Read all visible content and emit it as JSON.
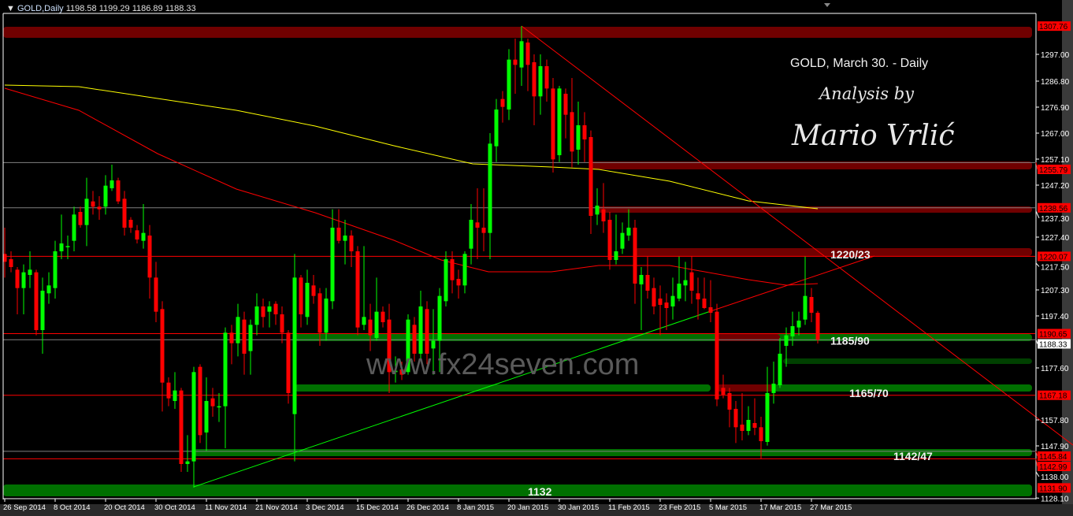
{
  "header": {
    "symbol": "GOLD,Daily",
    "ohlc": "1198.58 1199.29 1186.89 1188.33"
  },
  "annotations": {
    "title": "GOLD, March 30. - Daily",
    "analysis_by": "Analysis by",
    "author": "Mario Vrlić",
    "watermark": "www.fx24seven.com",
    "zone_labels": [
      {
        "text": "1220/23",
        "bar": 131,
        "price": 1220.8
      },
      {
        "text": "1185/90",
        "bar": 131,
        "price": 1188.0
      },
      {
        "text": "1165/70",
        "bar": 134,
        "price": 1168.0
      },
      {
        "text": "1142/47",
        "bar": 141,
        "price": 1144.0
      },
      {
        "text": "1132",
        "bar": 83,
        "price": 1130.5
      }
    ]
  },
  "colors": {
    "bull": "#00ff00",
    "bear": "#ff0000",
    "background": "#000000",
    "axis_text": "#ffffff",
    "ma_slow": "#ffff00",
    "ma_fast": "#ff0000",
    "support_zone": "#007000",
    "resistance_zone": "#700000"
  },
  "chart_data": {
    "type": "candlestick",
    "ylim": [
      1128.1,
      1307.76
    ],
    "y_ticks": [
      1297.0,
      1286.8,
      1276.9,
      1267.0,
      1257.1,
      1247.2,
      1237.3,
      1227.4,
      1217.5,
      1207.3,
      1197.4,
      1177.6,
      1157.8,
      1147.9,
      1138.0,
      1128.1
    ],
    "price_labels": [
      {
        "value": "1307.76",
        "style": "red"
      },
      {
        "value": "1255.79",
        "style": "red"
      },
      {
        "value": "1238.56",
        "style": "red"
      },
      {
        "value": "1220.07",
        "style": "red"
      },
      {
        "value": "1190.65",
        "style": "red"
      },
      {
        "value": "1188.33",
        "style": "current"
      },
      {
        "value": "1167.18",
        "style": "red"
      },
      {
        "value": "1145.84",
        "style": "red"
      },
      {
        "value": "1142.99",
        "style": "red"
      },
      {
        "value": "1131.90",
        "style": "red"
      }
    ],
    "x_ticks": [
      {
        "bar": 0,
        "label": "26 Sep 2014"
      },
      {
        "bar": 8,
        "label": "8 Oct 2014"
      },
      {
        "bar": 16,
        "label": "20 Oct 2014"
      },
      {
        "bar": 24,
        "label": "30 Oct 2014"
      },
      {
        "bar": 32,
        "label": "11 Nov 2014"
      },
      {
        "bar": 40,
        "label": "21 Nov 2014"
      },
      {
        "bar": 48,
        "label": "3 Dec 2014"
      },
      {
        "bar": 56,
        "label": "15 Dec 2014"
      },
      {
        "bar": 64,
        "label": "26 Dec 2014"
      },
      {
        "bar": 72,
        "label": "8 Jan 2015"
      },
      {
        "bar": 80,
        "label": "20 Jan 2015"
      },
      {
        "bar": 88,
        "label": "30 Jan 2015"
      },
      {
        "bar": 96,
        "label": "11 Feb 2015"
      },
      {
        "bar": 104,
        "label": "23 Feb 2015"
      },
      {
        "bar": 112,
        "label": "5 Mar 2015"
      },
      {
        "bar": 120,
        "label": "17 Mar 2015"
      },
      {
        "bar": 128,
        "label": "27 Mar 2015"
      }
    ],
    "ohlc": [
      [
        1221,
        1231,
        1212,
        1218
      ],
      [
        1219,
        1222,
        1214,
        1216
      ],
      [
        1215,
        1216,
        1198,
        1208
      ],
      [
        1208,
        1217,
        1198,
        1214
      ],
      [
        1213,
        1222,
        1208,
        1215
      ],
      [
        1214,
        1215,
        1190,
        1192
      ],
      [
        1192,
        1212,
        1183,
        1207
      ],
      [
        1206,
        1214,
        1202,
        1209
      ],
      [
        1208,
        1226,
        1204,
        1222
      ],
      [
        1222,
        1236,
        1219,
        1225
      ],
      [
        1224,
        1228,
        1219,
        1224
      ],
      [
        1226,
        1239,
        1222,
        1236
      ],
      [
        1237,
        1239,
        1231,
        1232
      ],
      [
        1232,
        1250,
        1224,
        1242
      ],
      [
        1241,
        1245,
        1236,
        1239
      ],
      [
        1239,
        1243,
        1234,
        1238
      ],
      [
        1239,
        1251,
        1236,
        1247
      ],
      [
        1246,
        1255,
        1245,
        1249
      ],
      [
        1249,
        1250,
        1240,
        1241
      ],
      [
        1242,
        1245,
        1228,
        1231
      ],
      [
        1234,
        1235,
        1229,
        1231
      ],
      [
        1230,
        1232,
        1225,
        1226.5
      ],
      [
        1226,
        1240,
        1223,
        1229
      ],
      [
        1228,
        1232,
        1204,
        1212
      ],
      [
        1212,
        1218,
        1195,
        1199
      ],
      [
        1200,
        1203,
        1161,
        1172
      ],
      [
        1172,
        1174,
        1163,
        1166
      ],
      [
        1165,
        1176,
        1162,
        1169
      ],
      [
        1169,
        1170,
        1138,
        1141
      ],
      [
        1141,
        1152,
        1138,
        1142
      ],
      [
        1142,
        1178,
        1132,
        1176
      ],
      [
        1178,
        1179,
        1149,
        1152
      ],
      [
        1153,
        1174,
        1146,
        1165
      ],
      [
        1166,
        1170,
        1159,
        1163
      ],
      [
        1163,
        1168,
        1157,
        1163
      ],
      [
        1163,
        1193,
        1147,
        1191
      ],
      [
        1191,
        1194,
        1179,
        1187
      ],
      [
        1187,
        1202,
        1182,
        1197
      ],
      [
        1196,
        1199,
        1175,
        1183
      ],
      [
        1184,
        1196,
        1175,
        1194
      ],
      [
        1194,
        1206,
        1190,
        1201
      ],
      [
        1201,
        1204,
        1193,
        1197
      ],
      [
        1199,
        1203,
        1193,
        1201
      ],
      [
        1202,
        1203,
        1194,
        1198
      ],
      [
        1198,
        1201,
        1187,
        1191
      ],
      [
        1191,
        1192,
        1164,
        1168
      ],
      [
        1160,
        1221,
        1142,
        1212
      ],
      [
        1212,
        1213,
        1193,
        1198
      ],
      [
        1197,
        1215,
        1194,
        1210
      ],
      [
        1209,
        1213,
        1202,
        1205
      ],
      [
        1206,
        1208,
        1186,
        1191
      ],
      [
        1191,
        1208,
        1188,
        1204
      ],
      [
        1203,
        1238,
        1200,
        1231
      ],
      [
        1231,
        1238,
        1225,
        1226
      ],
      [
        1226,
        1234,
        1217,
        1228
      ],
      [
        1228,
        1230,
        1216,
        1222
      ],
      [
        1222,
        1224,
        1190,
        1193
      ],
      [
        1194,
        1224,
        1192,
        1197
      ],
      [
        1196,
        1202,
        1184,
        1190
      ],
      [
        1189,
        1212,
        1188,
        1199
      ],
      [
        1199,
        1201,
        1193,
        1195
      ],
      [
        1196,
        1202,
        1168,
        1176
      ],
      [
        1176,
        1182,
        1172,
        1176.5
      ],
      [
        1177,
        1180,
        1173,
        1175
      ],
      [
        1176,
        1198,
        1175,
        1196
      ],
      [
        1194,
        1197,
        1180,
        1183
      ],
      [
        1183,
        1207,
        1181,
        1201
      ],
      [
        1200,
        1203,
        1179,
        1183
      ],
      [
        1185,
        1200,
        1175,
        1188
      ],
      [
        1188,
        1208,
        1176,
        1205
      ],
      [
        1203,
        1222,
        1201,
        1219
      ],
      [
        1219,
        1222,
        1206,
        1211
      ],
      [
        1211.5,
        1215,
        1204,
        1209
      ],
      [
        1209,
        1222,
        1206,
        1221
      ],
      [
        1223,
        1240,
        1217,
        1234
      ],
      [
        1233,
        1246,
        1219,
        1231
      ],
      [
        1231,
        1246,
        1222,
        1229
      ],
      [
        1229,
        1267,
        1219,
        1263
      ],
      [
        1262,
        1280,
        1256,
        1276
      ],
      [
        1280,
        1283,
        1271,
        1277
      ],
      [
        1276,
        1299,
        1272,
        1295
      ],
      [
        1295,
        1303,
        1282,
        1293
      ],
      [
        1292,
        1307.8,
        1285,
        1302
      ],
      [
        1301.5,
        1303,
        1283,
        1293
      ],
      [
        1294,
        1297,
        1270,
        1281
      ],
      [
        1281,
        1297,
        1274,
        1292.5
      ],
      [
        1292.5,
        1295,
        1279,
        1284
      ],
      [
        1284,
        1288,
        1252,
        1257
      ],
      [
        1258.6,
        1285,
        1256,
        1284
      ],
      [
        1282,
        1284,
        1265,
        1274
      ],
      [
        1275,
        1288,
        1254,
        1260
      ],
      [
        1260.7,
        1279,
        1255,
        1270
      ],
      [
        1270,
        1275,
        1256,
        1264.6
      ],
      [
        1265.5,
        1268,
        1228.6,
        1235.5
      ],
      [
        1236,
        1246,
        1232,
        1239.4
      ],
      [
        1238,
        1248,
        1229,
        1233.4
      ],
      [
        1234,
        1237,
        1215,
        1218.7
      ],
      [
        1218.7,
        1236,
        1217,
        1222
      ],
      [
        1223,
        1233,
        1221,
        1229
      ],
      [
        1228,
        1238,
        1226,
        1231
      ],
      [
        1231,
        1234,
        1202,
        1209.7
      ],
      [
        1209.4,
        1216,
        1192,
        1213
      ],
      [
        1213,
        1220,
        1204,
        1207
      ],
      [
        1208,
        1212,
        1198,
        1201
      ],
      [
        1204,
        1209,
        1190,
        1201.6
      ],
      [
        1202.5,
        1206,
        1192,
        1200.4
      ],
      [
        1201,
        1212,
        1196,
        1205
      ],
      [
        1204,
        1220,
        1203,
        1209.7
      ],
      [
        1209,
        1218,
        1203,
        1211
      ],
      [
        1214,
        1220,
        1202,
        1207
      ],
      [
        1206,
        1212,
        1196,
        1203.7
      ],
      [
        1204,
        1212,
        1200,
        1200.4
      ],
      [
        1200.7,
        1211,
        1195,
        1198.6
      ],
      [
        1199,
        1202,
        1163,
        1165.6
      ],
      [
        1170,
        1175,
        1166,
        1167.4
      ],
      [
        1168,
        1170,
        1155,
        1161.7
      ],
      [
        1162,
        1165,
        1149,
        1155
      ],
      [
        1156,
        1168,
        1150,
        1153.6
      ],
      [
        1153.6,
        1163,
        1152,
        1157.8
      ],
      [
        1156.6,
        1166,
        1152,
        1154.8
      ],
      [
        1155,
        1159,
        1143,
        1149.7
      ],
      [
        1149.4,
        1178,
        1148,
        1168
      ],
      [
        1168,
        1180,
        1164,
        1171.6
      ],
      [
        1171,
        1189,
        1170,
        1183
      ],
      [
        1186,
        1193,
        1178,
        1190
      ],
      [
        1189.6,
        1199,
        1186,
        1193.5
      ],
      [
        1193,
        1199,
        1190,
        1195.6
      ],
      [
        1196,
        1220,
        1194,
        1205
      ],
      [
        1204.6,
        1208,
        1195,
        1198.6
      ],
      [
        1198.58,
        1199.29,
        1186.89,
        1188.33
      ]
    ],
    "moving_averages": [
      {
        "color": "#ffff00",
        "points": [
          [
            0,
            1285.3
          ],
          [
            11.75,
            1284.7
          ],
          [
            24.25,
            1280.2
          ],
          [
            36.75,
            1275.7
          ],
          [
            49.25,
            1269.7
          ],
          [
            61.75,
            1262.2
          ],
          [
            74.25,
            1255.3
          ],
          [
            86.75,
            1254.1
          ],
          [
            94.25,
            1253.2
          ],
          [
            105.5,
            1248.7
          ],
          [
            118,
            1241.2
          ],
          [
            129,
            1238.2
          ]
        ]
      },
      {
        "color": "#ff0000",
        "points": [
          [
            0,
            1284.1
          ],
          [
            11.75,
            1275.7
          ],
          [
            24.25,
            1259.2
          ],
          [
            36.75,
            1245.7
          ],
          [
            49.25,
            1236.7
          ],
          [
            61.75,
            1226.2
          ],
          [
            69.25,
            1218.7
          ],
          [
            76.75,
            1214.2
          ],
          [
            86.75,
            1214.2
          ],
          [
            94.25,
            1216.6
          ],
          [
            105.5,
            1216.6
          ],
          [
            118,
            1211.2
          ],
          [
            124,
            1209.1
          ],
          [
            129,
            1209.7
          ]
        ]
      }
    ],
    "horizontal_lines": [
      {
        "price": 1220.07,
        "color": "#ff0000"
      },
      {
        "price": 1190.65,
        "color": "#ff0000"
      },
      {
        "price": 1167.18,
        "color": "#ff0000"
      },
      {
        "price": 1145.84,
        "color": "#808080"
      },
      {
        "price": 1142.99,
        "color": "#ff0000"
      },
      {
        "price": 1255.79,
        "color": "#808080"
      },
      {
        "price": 1238.56,
        "color": "#808080"
      },
      {
        "price": 1188.33,
        "color": "#808080"
      }
    ],
    "zones": [
      {
        "top": 1307.5,
        "bottom": 1303.3,
        "from_bar": -1,
        "to_bar": 163,
        "color": "#700000"
      },
      {
        "top": 1256.2,
        "bottom": 1253.2,
        "from_bar": 93,
        "to_bar": 163,
        "color": "#700000"
      },
      {
        "top": 1239.1,
        "bottom": 1236.7,
        "from_bar": 94,
        "to_bar": 163,
        "color": "#700000"
      },
      {
        "top": 1223.2,
        "bottom": 1220.2,
        "from_bar": 100,
        "to_bar": 163,
        "color": "#700000"
      },
      {
        "top": 1190.5,
        "bottom": 1187.8,
        "from_bar": 46,
        "to_bar": 163,
        "color": "#007000"
      },
      {
        "top": 1190.5,
        "bottom": 1187.8,
        "from_bar": 113,
        "to_bar": 123,
        "color": "#700000"
      },
      {
        "top": 1181.2,
        "bottom": 1179.1,
        "from_bar": 123.5,
        "to_bar": 163,
        "color": "#004000"
      },
      {
        "top": 1171.3,
        "bottom": 1168.6,
        "from_bar": 46,
        "to_bar": 112,
        "color": "#007000"
      },
      {
        "top": 1171.3,
        "bottom": 1168.6,
        "from_bar": 113,
        "to_bar": 122,
        "color": "#700000"
      },
      {
        "top": 1171.3,
        "bottom": 1168.6,
        "from_bar": 122,
        "to_bar": 163,
        "color": "#007000"
      },
      {
        "top": 1146.7,
        "bottom": 1144.0,
        "from_bar": 30,
        "to_bar": 163,
        "color": "#007000"
      },
      {
        "top": 1133.2,
        "bottom": 1128.7,
        "from_bar": -1,
        "to_bar": 163,
        "color": "#007000"
      }
    ],
    "trendlines": [
      {
        "from": [
          82,
          1307.8
        ],
        "to": [
          169.5,
          1148.2
        ],
        "color": "#ff0000"
      },
      {
        "from": [
          30,
          1132.3
        ],
        "to": [
          112,
          1199.2
        ],
        "color": "#00ff00"
      },
      {
        "from": [
          112,
          1199.2
        ],
        "to": [
          138,
          1220.2
        ],
        "color": "#ff0000"
      }
    ]
  }
}
